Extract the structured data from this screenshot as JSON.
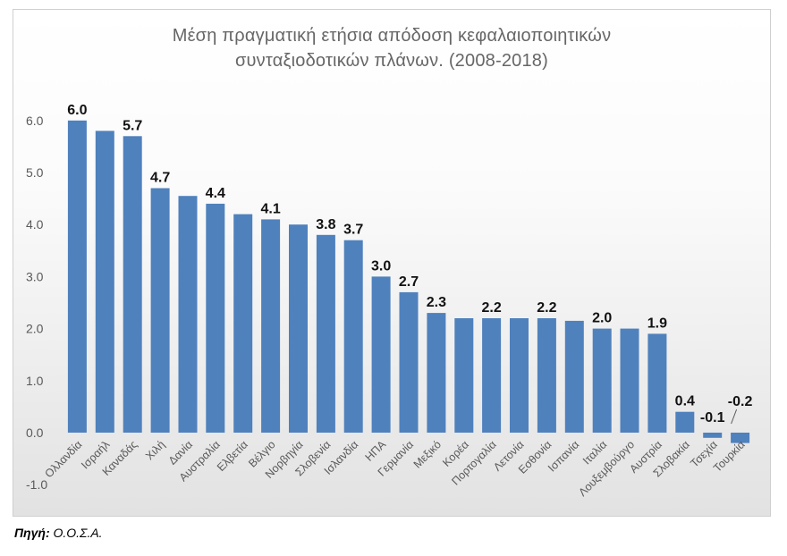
{
  "chart_data": {
    "type": "bar",
    "title_line1": "Μέση πραγματική ετήσια απόδοση κεφαλαιοποιητικών",
    "title_line2": "συνταξιοδοτικών πλάνων.  (2008-2018)",
    "categories": [
      "Ολλανδία",
      "Ισραήλ",
      "Καναδάς",
      "Χιλή",
      "Δανία",
      "Αυστραλία",
      "Ελβετία",
      "Βέλγιο",
      "Νορβηγία",
      "Σλοβενία",
      "Ισλανδία",
      "ΗΠΑ",
      "Γερμανία",
      "Μεξικό",
      "Κορέα",
      "Πορτογαλία",
      "Λετονία",
      "Εσθονία",
      "Ισπανία",
      "Ιταλία",
      "Λουξεμβούργο",
      "Αυστρία",
      "Σλοβακία",
      "Τσεχία",
      "Τουρκία"
    ],
    "values": [
      6.0,
      5.8,
      5.7,
      4.7,
      4.55,
      4.4,
      4.2,
      4.1,
      4.0,
      3.8,
      3.7,
      3.0,
      2.7,
      2.3,
      2.2,
      2.2,
      2.2,
      2.2,
      2.15,
      2.0,
      2.0,
      1.9,
      0.4,
      -0.1,
      -0.2
    ],
    "data_labels": [
      "6.0",
      "",
      "5.7",
      "4.7",
      "",
      "4.4",
      "",
      "4.1",
      "",
      "3.8",
      "3.7",
      "3.0",
      "2.7",
      "2.3",
      "",
      "2.2",
      "",
      "2.2",
      "",
      "2.0",
      "",
      "1.9",
      "0.4",
      "-0.1",
      "-0.2"
    ],
    "yticks": [
      "6.0",
      "5.0",
      "4.0",
      "3.0",
      "2.0",
      "1.0",
      "0.0",
      "-1.0"
    ],
    "ylim": [
      -1.0,
      6.0
    ],
    "color": "#4f81bd",
    "grid": false,
    "legend": "none"
  },
  "source": {
    "label": "Πηγή:",
    "text": "Ο.Ο.Σ.Α."
  }
}
